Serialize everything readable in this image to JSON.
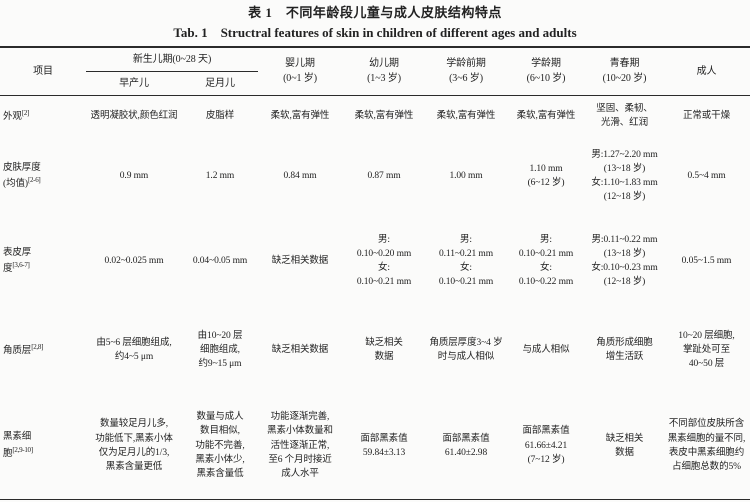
{
  "page": {
    "title_cn": "表 1　不同年龄段儿童与成人皮肤结构特点",
    "title_en": "Tab. 1　Structral features of skin in children of different ages and adults"
  },
  "table": {
    "header": {
      "item": "项目",
      "newborn": {
        "label": "新生儿期(0~28 天)",
        "sub": [
          "早产儿",
          "足月儿"
        ]
      },
      "cols": [
        {
          "name": "婴儿期",
          "range": "(0~1 岁)"
        },
        {
          "name": "幼儿期",
          "range": "(1~3 岁)"
        },
        {
          "name": "学龄前期",
          "range": "(3~6 岁)"
        },
        {
          "name": "学龄期",
          "range": "(6~10 岁)"
        },
        {
          "name": "青春期",
          "range": "(10~20 岁)"
        }
      ],
      "adult": "成人"
    },
    "rows": [
      {
        "item": "外观",
        "ref": "[2]",
        "cells": [
          "透明凝胶状,颜色红润",
          "皮脂样",
          "柔软,富有弹性",
          "柔软,富有弹性",
          "柔软,富有弹性",
          "柔软,富有弹性",
          "坚固、柔韧、\n光滑、红润",
          "正常或干燥"
        ]
      },
      {
        "item": "皮肤厚度\n(均值)",
        "ref": "[2-6]",
        "cells": [
          "0.9 mm",
          "1.2 mm",
          "0.84 mm",
          "0.87 mm",
          "1.00 mm",
          "1.10 mm\n(6~12 岁)",
          "男:1.27~2.20 mm\n(13~18 岁)\n女:1.10~1.83 mm\n(12~18 岁)",
          "0.5~4 mm"
        ]
      },
      {
        "item": "表皮厚\n度",
        "ref": "[3,6-7]",
        "cells": [
          "0.02~0.025 mm",
          "0.04~0.05 mm",
          "缺乏相关数据",
          "男:\n0.10~0.20 mm\n女:\n0.10~0.21 mm",
          "男:\n0.11~0.21 mm\n女:\n0.10~0.21 mm",
          "男:\n0.10~0.21 mm\n女:\n0.10~0.22 mm",
          "男:0.11~0.22 mm\n(13~18 岁)\n女:0.10~0.23 mm\n(12~18 岁)",
          "0.05~1.5 mm"
        ]
      },
      {
        "item": "角质层",
        "ref": "[2,8]",
        "cells": [
          "由5~6 层细胞组成,\n约4~5 μm",
          "由10~20 层\n细胞组成,\n约9~15 μm",
          "缺乏相关数据",
          "缺乏相关\n数据",
          "角质层厚度3~4 岁\n时与成人相似",
          "与成人相似",
          "角质形成细胞\n增生活跃",
          "10~20 层细胞,\n掌趾处可至\n40~50 层"
        ]
      },
      {
        "item": "黑素细\n胞",
        "ref": "[2,9-10]",
        "cells": [
          "数量较足月儿多,\n功能低下,黑素小体\n仅为足月儿的1/3,\n黑素含量更低",
          "数量与成人\n数目相似,\n功能不完善,\n黑素小体少,\n黑素含量低",
          "功能逐渐完善,\n黑素小体数量和\n活性逐渐正常,\n至6 个月时接近\n成人水平",
          "面部黑素值\n59.84±3.13",
          "面部黑素值\n61.40±2.98",
          "面部黑素值\n61.66±4.21\n(7~12 岁)",
          "缺乏相关\n数据",
          "不同部位皮肤所含\n黑素细胞的量不同,\n表皮中黑素细胞约\n占细胞总数的5%"
        ]
      }
    ]
  }
}
